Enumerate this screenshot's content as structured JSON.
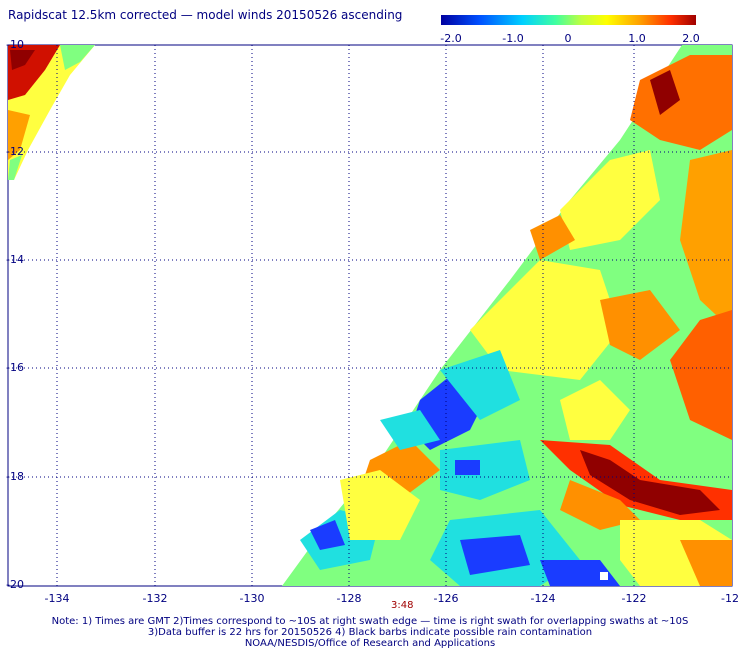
{
  "title": "Rapidscat 12.5km corrected — model winds 20150526 ascending",
  "colorbar": {
    "ticks": [
      "-2.0",
      "-1.0",
      "0",
      "1.0",
      "2.0"
    ],
    "colors": [
      "#0000a0",
      "#0050ff",
      "#00d0ff",
      "#40ffa0",
      "#c0ff40",
      "#ffff00",
      "#ffa000",
      "#ff3000",
      "#a00000"
    ]
  },
  "axes": {
    "y_labels": [
      "-10",
      "-12",
      "-14",
      "-16",
      "-18",
      "-20"
    ],
    "x_labels": [
      "-134",
      "-132",
      "-130",
      "-128",
      "-126",
      "-124",
      "-122",
      "-12"
    ]
  },
  "time_label": "3:48",
  "notes": [
    "Note: 1) Times are GMT 2)Times correspond to ~10S at right swath edge — time is right swath for overlapping swaths at ~10S",
    "3)Data buffer is 22 hrs for 20150526 4) Black barbs indicate possible rain contamination",
    "NOAA/NESDIS/Office of Research and Applications"
  ],
  "map_colors": {
    "low": "#1a3cff",
    "mid": "#20e0e0",
    "midhigh": "#80ff80",
    "high": "#ffff40",
    "veryhigh": "#ff9000",
    "extreme": "#d01000",
    "max": "#900000"
  }
}
